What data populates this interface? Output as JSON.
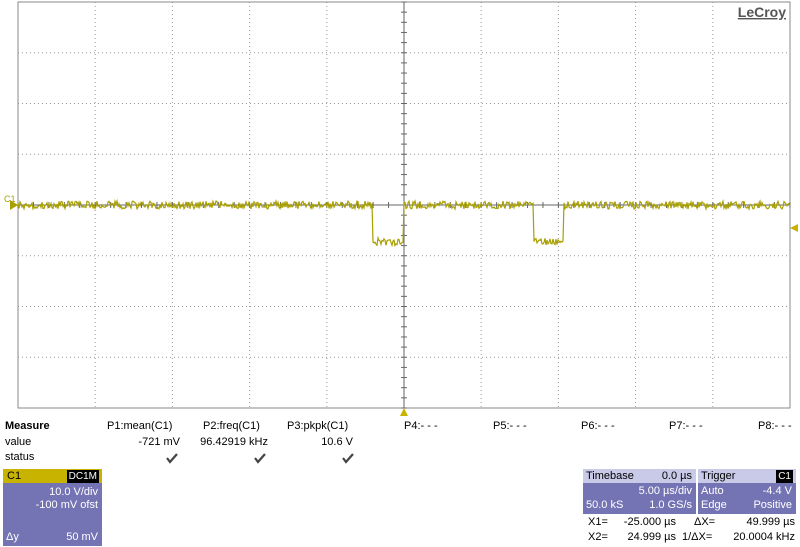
{
  "logo": "LeCroy",
  "channel_marker": "C1",
  "measure": {
    "header": [
      "Measure",
      "P1:mean(C1)",
      "P2:freq(C1)",
      "P3:pkpk(C1)",
      "P4:- - -",
      "P5:- - -",
      "P6:- - -",
      "P7:- - -",
      "P8:- - -"
    ],
    "value_label": "value",
    "values": [
      "-721 mV",
      "96.42919 kHz",
      "10.6 V"
    ],
    "status_label": "status"
  },
  "channel": {
    "name": "C1",
    "coupling": "DC1M",
    "scale": "10.0 V/div",
    "offset": "-100 mV ofst",
    "delta_label": "Δy",
    "delta": "50 mV"
  },
  "timebase": {
    "title": "Timebase",
    "delay": "0.0 µs",
    "scale": "5.00 µs/div",
    "samples": "50.0 kS",
    "rate": "1.0 GS/s"
  },
  "trigger": {
    "title": "Trigger",
    "source": "C1",
    "mode": "Auto",
    "level": "-4.4 V",
    "type": "Edge",
    "slope": "Positive"
  },
  "cursors": {
    "x1_label": "X1=",
    "x1": "-25.000 µs",
    "dx_label": "ΔX=",
    "dx": "49.999 µs",
    "x2_label": "X2=",
    "x2": "24.999 µs",
    "inv_label": "1/ΔX=",
    "inv": "20.0004 kHz"
  }
}
